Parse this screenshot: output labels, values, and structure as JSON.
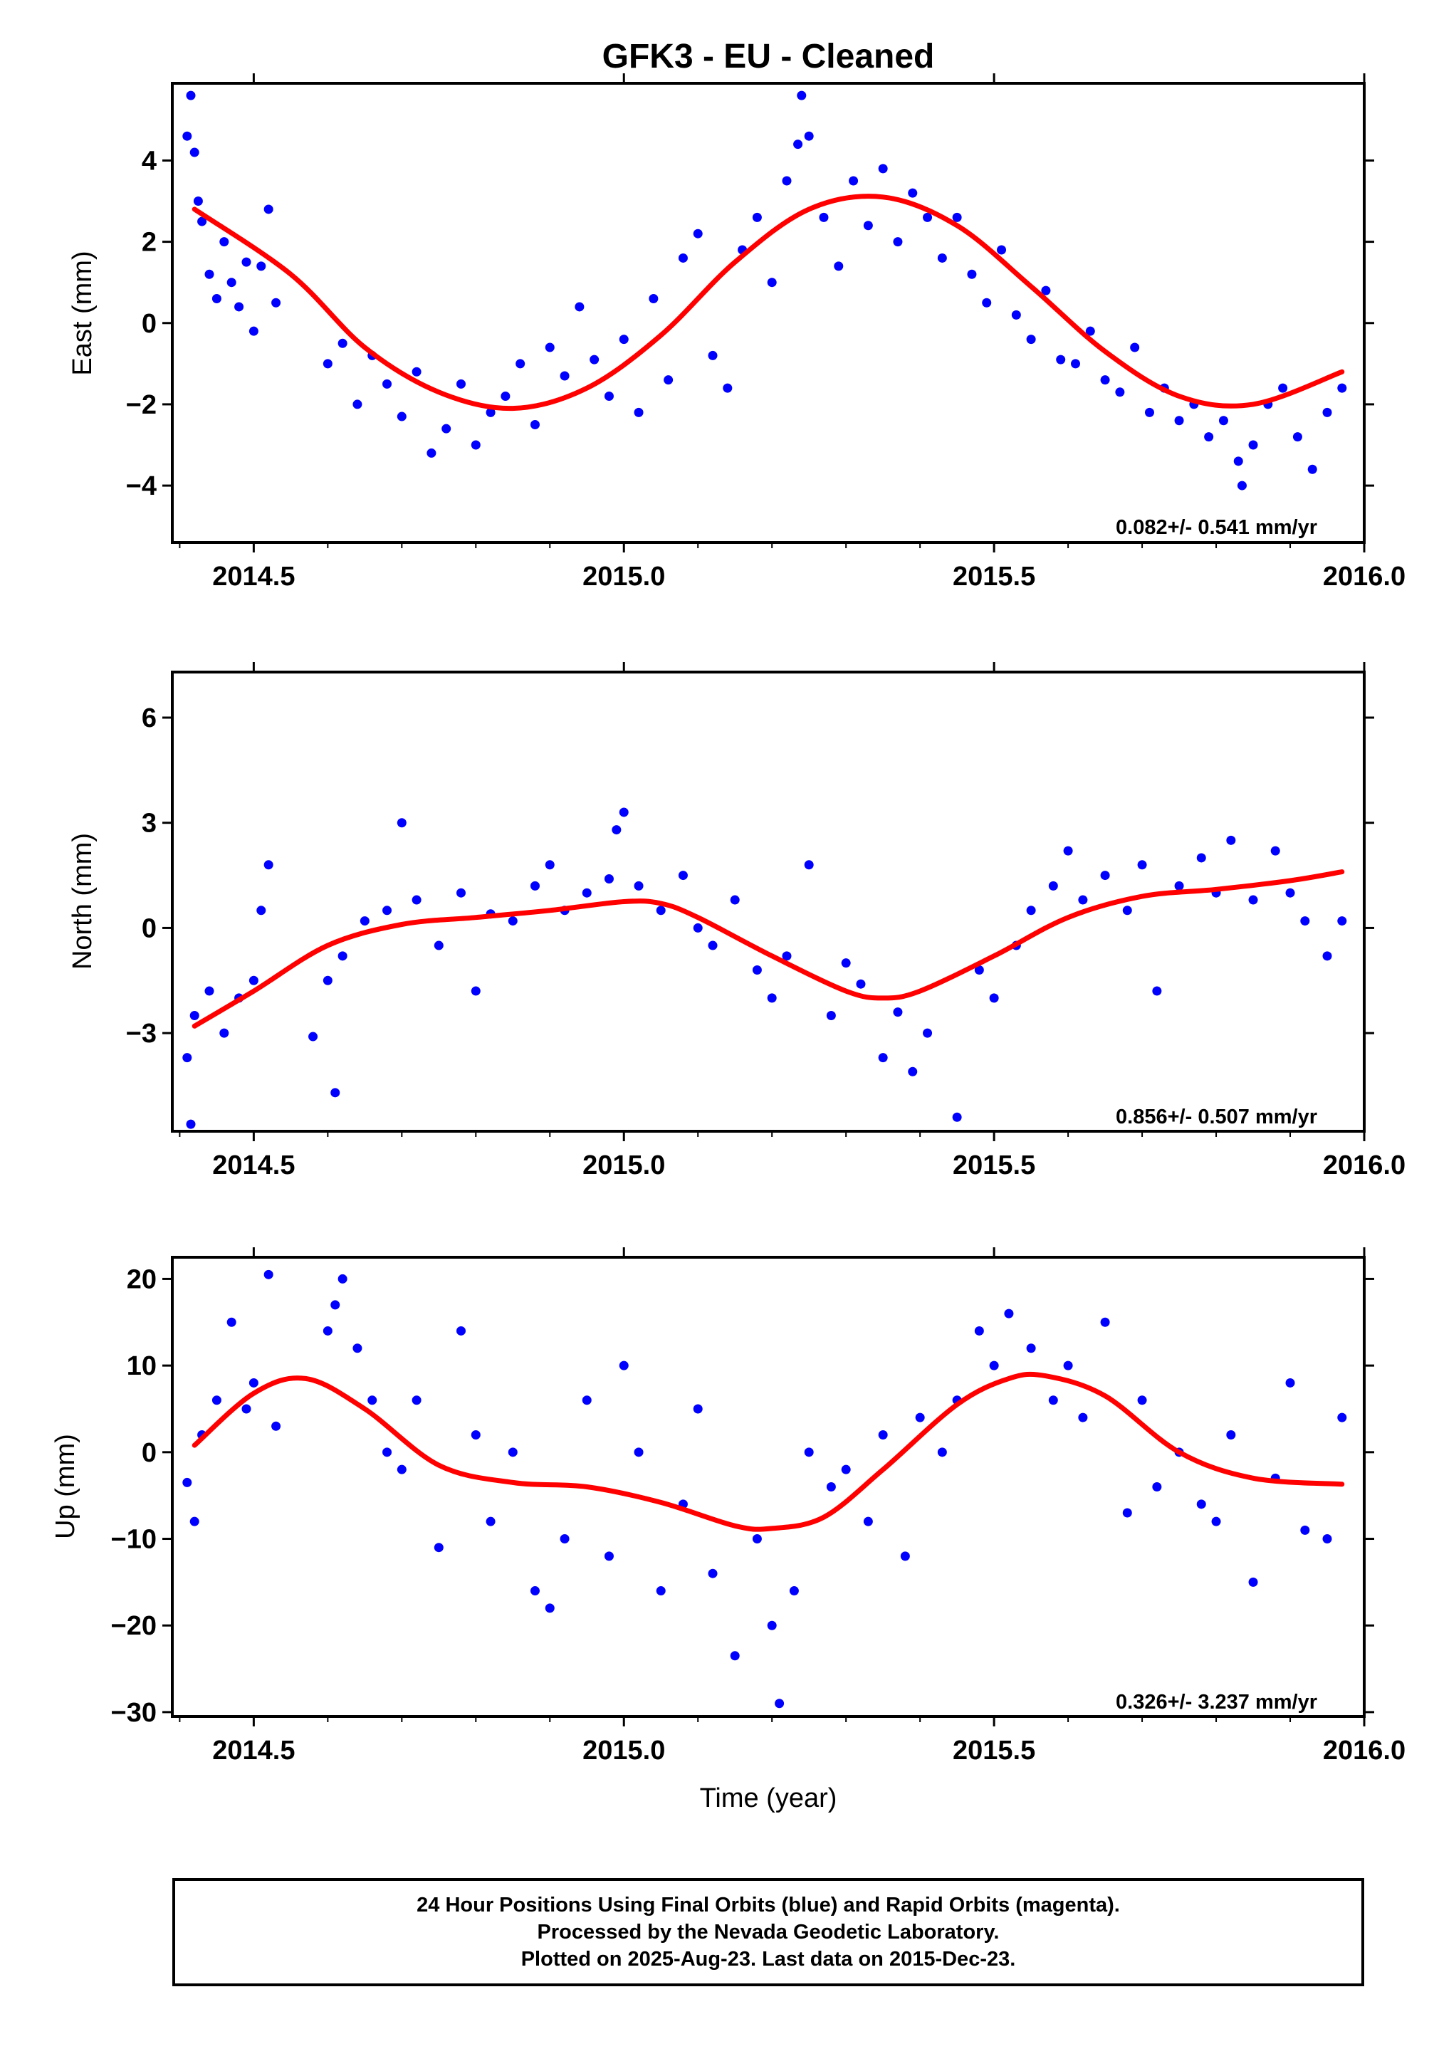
{
  "title": "GFK3  - EU - Cleaned",
  "xlabel": "Time (year)",
  "colors": {
    "points": "#0000ff",
    "fit": "#ff0000",
    "frame": "#000000"
  },
  "footer": {
    "lines": [
      "24 Hour Positions Using Final Orbits (blue) and Rapid Orbits (magenta).",
      "Processed by the Nevada Geodetic Laboratory.",
      "Plotted on 2025-Aug-23. Last data on 2015-Dec-23."
    ]
  },
  "chart_data": [
    {
      "type": "scatter",
      "ylabel": "East (mm)",
      "rate_label": "0.082+/- 0.541 mm/yr",
      "xlim": [
        2014.39,
        2016.0
      ],
      "ylim": [
        -5.4,
        5.9
      ],
      "x_ticks": [
        "2014.5",
        "2015.0",
        "2015.5",
        "2016.0"
      ],
      "y_ticks": [
        "-4",
        "-2",
        "0",
        "2",
        "4"
      ],
      "fit": {
        "x": [
          2014.42,
          2014.55,
          2014.65,
          2014.75,
          2014.85,
          2014.95,
          2015.05,
          2015.15,
          2015.25,
          2015.35,
          2015.45,
          2015.55,
          2015.65,
          2015.75,
          2015.85,
          2015.97
        ],
        "y": [
          2.8,
          1.2,
          -0.6,
          -1.7,
          -2.1,
          -1.6,
          -0.3,
          1.5,
          2.8,
          3.1,
          2.4,
          0.9,
          -0.7,
          -1.8,
          -2.0,
          -1.2
        ]
      },
      "points": {
        "x": [
          2014.41,
          2014.415,
          2014.42,
          2014.425,
          2014.43,
          2014.44,
          2014.45,
          2014.46,
          2014.47,
          2014.48,
          2014.49,
          2014.5,
          2014.51,
          2014.52,
          2014.53,
          2014.6,
          2014.62,
          2014.64,
          2014.66,
          2014.68,
          2014.7,
          2014.72,
          2014.74,
          2014.76,
          2014.78,
          2014.8,
          2014.82,
          2014.84,
          2014.86,
          2014.88,
          2014.9,
          2014.92,
          2014.94,
          2014.96,
          2014.98,
          2015.0,
          2015.02,
          2015.04,
          2015.06,
          2015.08,
          2015.1,
          2015.12,
          2015.14,
          2015.16,
          2015.18,
          2015.2,
          2015.22,
          2015.235,
          2015.24,
          2015.25,
          2015.27,
          2015.29,
          2015.31,
          2015.33,
          2015.35,
          2015.37,
          2015.39,
          2015.41,
          2015.43,
          2015.45,
          2015.47,
          2015.49,
          2015.51,
          2015.53,
          2015.55,
          2015.57,
          2015.59,
          2015.61,
          2015.63,
          2015.65,
          2015.67,
          2015.69,
          2015.71,
          2015.73,
          2015.75,
          2015.77,
          2015.79,
          2015.81,
          2015.83,
          2015.835,
          2015.85,
          2015.87,
          2015.89,
          2015.91,
          2015.93,
          2015.95,
          2015.97
        ],
        "y": [
          4.6,
          5.6,
          4.2,
          3.0,
          2.5,
          1.2,
          0.6,
          2.0,
          1.0,
          0.4,
          1.5,
          -0.2,
          1.4,
          2.8,
          0.5,
          -1.0,
          -0.5,
          -2.0,
          -0.8,
          -1.5,
          -2.3,
          -1.2,
          -3.2,
          -2.6,
          -1.5,
          -3.0,
          -2.2,
          -1.8,
          -1.0,
          -2.5,
          -0.6,
          -1.3,
          0.4,
          -0.9,
          -1.8,
          -0.4,
          -2.2,
          0.6,
          -1.4,
          1.6,
          2.2,
          -0.8,
          -1.6,
          1.8,
          2.6,
          1.0,
          3.5,
          4.4,
          5.6,
          4.6,
          2.6,
          1.4,
          3.5,
          2.4,
          3.8,
          2.0,
          3.2,
          2.6,
          1.6,
          2.6,
          1.2,
          0.5,
          1.8,
          0.2,
          -0.4,
          0.8,
          -0.9,
          -1.0,
          -0.2,
          -1.4,
          -1.7,
          -0.6,
          -2.2,
          -1.6,
          -2.4,
          -2.0,
          -2.8,
          -2.4,
          -3.4,
          -4.0,
          -3.0,
          -2.0,
          -1.6,
          -2.8,
          -3.6,
          -2.2,
          -1.6
        ]
      }
    },
    {
      "type": "scatter",
      "ylabel": "North (mm)",
      "rate_label": "0.856+/- 0.507 mm/yr",
      "xlim": [
        2014.39,
        2016.0
      ],
      "ylim": [
        -5.8,
        7.3
      ],
      "x_ticks": [
        "2014.5",
        "2015.0",
        "2015.5",
        "2016.0"
      ],
      "y_ticks": [
        "-3",
        "0",
        "3",
        "6"
      ],
      "fit": {
        "x": [
          2014.42,
          2014.5,
          2014.6,
          2014.7,
          2014.8,
          2014.9,
          2015.0,
          2015.05,
          2015.1,
          2015.2,
          2015.3,
          2015.35,
          2015.4,
          2015.5,
          2015.6,
          2015.7,
          2015.8,
          2015.9,
          2015.97
        ],
        "y": [
          -2.8,
          -1.8,
          -0.5,
          0.1,
          0.3,
          0.5,
          0.75,
          0.7,
          0.3,
          -0.8,
          -1.8,
          -2.0,
          -1.8,
          -0.8,
          0.3,
          0.9,
          1.1,
          1.35,
          1.6
        ]
      },
      "points": {
        "x": [
          2014.41,
          2014.415,
          2014.42,
          2014.44,
          2014.46,
          2014.48,
          2014.5,
          2014.51,
          2014.52,
          2014.58,
          2014.6,
          2014.61,
          2014.62,
          2014.65,
          2014.68,
          2014.7,
          2014.72,
          2014.75,
          2014.78,
          2014.8,
          2014.82,
          2014.85,
          2014.88,
          2014.9,
          2014.92,
          2014.95,
          2014.98,
          2014.99,
          2015.0,
          2015.02,
          2015.05,
          2015.08,
          2015.1,
          2015.12,
          2015.15,
          2015.18,
          2015.2,
          2015.22,
          2015.25,
          2015.28,
          2015.3,
          2015.32,
          2015.35,
          2015.37,
          2015.39,
          2015.41,
          2015.45,
          2015.48,
          2015.5,
          2015.53,
          2015.55,
          2015.58,
          2015.6,
          2015.62,
          2015.65,
          2015.68,
          2015.7,
          2015.72,
          2015.75,
          2015.78,
          2015.8,
          2015.82,
          2015.85,
          2015.88,
          2015.9,
          2015.92,
          2015.95,
          2015.97
        ],
        "y": [
          -3.7,
          -5.6,
          -2.5,
          -1.8,
          -3.0,
          -2.0,
          -1.5,
          0.5,
          1.8,
          -3.1,
          -1.5,
          -4.7,
          -0.8,
          0.2,
          0.5,
          3.0,
          0.8,
          -0.5,
          1.0,
          -1.8,
          0.4,
          0.2,
          1.2,
          1.8,
          0.5,
          1.0,
          1.4,
          2.8,
          3.3,
          1.2,
          0.5,
          1.5,
          0.0,
          -0.5,
          0.8,
          -1.2,
          -2.0,
          -0.8,
          1.8,
          -2.5,
          -1.0,
          -1.6,
          -3.7,
          -2.4,
          -4.1,
          -3.0,
          -5.4,
          -1.2,
          -2.0,
          -0.5,
          0.5,
          1.2,
          2.2,
          0.8,
          1.5,
          0.5,
          1.8,
          -1.8,
          1.2,
          2.0,
          1.0,
          2.5,
          0.8,
          2.2,
          1.0,
          0.2,
          -0.8,
          0.2
        ]
      }
    },
    {
      "type": "scatter",
      "ylabel": "Up (mm)",
      "rate_label": "0.326+/- 3.237 mm/yr",
      "xlim": [
        2014.39,
        2016.0
      ],
      "ylim": [
        -30.5,
        22.5
      ],
      "x_ticks": [
        "2014.5",
        "2015.0",
        "2015.5",
        "2016.0"
      ],
      "y_ticks": [
        "-30",
        "-20",
        "-10",
        "0",
        "10",
        "20"
      ],
      "fit": {
        "x": [
          2014.42,
          2014.5,
          2014.57,
          2014.65,
          2014.75,
          2014.85,
          2014.95,
          2015.05,
          2015.15,
          2015.2,
          2015.27,
          2015.35,
          2015.45,
          2015.52,
          2015.57,
          2015.65,
          2015.75,
          2015.85,
          2015.97
        ],
        "y": [
          0.8,
          6.8,
          8.5,
          5.0,
          -1.5,
          -3.5,
          -4.0,
          -5.8,
          -8.5,
          -8.8,
          -7.5,
          -2.0,
          5.5,
          8.5,
          8.8,
          6.5,
          0.0,
          -3.0,
          -3.7
        ]
      },
      "points": {
        "x": [
          2014.41,
          2014.42,
          2014.43,
          2014.45,
          2014.47,
          2014.49,
          2014.5,
          2014.52,
          2014.53,
          2014.6,
          2014.61,
          2014.62,
          2014.64,
          2014.66,
          2014.68,
          2014.7,
          2014.72,
          2014.75,
          2014.78,
          2014.8,
          2014.82,
          2014.85,
          2014.88,
          2014.9,
          2014.92,
          2014.95,
          2014.98,
          2015.0,
          2015.02,
          2015.05,
          2015.08,
          2015.1,
          2015.12,
          2015.15,
          2015.18,
          2015.2,
          2015.21,
          2015.23,
          2015.25,
          2015.28,
          2015.3,
          2015.33,
          2015.35,
          2015.38,
          2015.4,
          2015.43,
          2015.45,
          2015.48,
          2015.5,
          2015.52,
          2015.55,
          2015.58,
          2015.6,
          2015.62,
          2015.65,
          2015.68,
          2015.7,
          2015.72,
          2015.75,
          2015.78,
          2015.8,
          2015.82,
          2015.85,
          2015.88,
          2015.9,
          2015.92,
          2015.95,
          2015.97
        ],
        "y": [
          -3.5,
          -8.0,
          2.0,
          6.0,
          15.0,
          5.0,
          8.0,
          20.5,
          3.0,
          14.0,
          17.0,
          20.0,
          12.0,
          6.0,
          0.0,
          -2.0,
          6.0,
          -11.0,
          14.0,
          2.0,
          -8.0,
          0.0,
          -16.0,
          -18.0,
          -10.0,
          6.0,
          -12.0,
          10.0,
          0.0,
          -16.0,
          -6.0,
          5.0,
          -14.0,
          -23.5,
          -10.0,
          -20.0,
          -29.0,
          -16.0,
          0.0,
          -4.0,
          -2.0,
          -8.0,
          2.0,
          -12.0,
          4.0,
          0.0,
          6.0,
          14.0,
          10.0,
          16.0,
          12.0,
          6.0,
          10.0,
          4.0,
          15.0,
          -7.0,
          6.0,
          -4.0,
          0.0,
          -6.0,
          -8.0,
          2.0,
          -15.0,
          -3.0,
          8.0,
          -9.0,
          -10.0,
          4.0
        ]
      }
    }
  ]
}
